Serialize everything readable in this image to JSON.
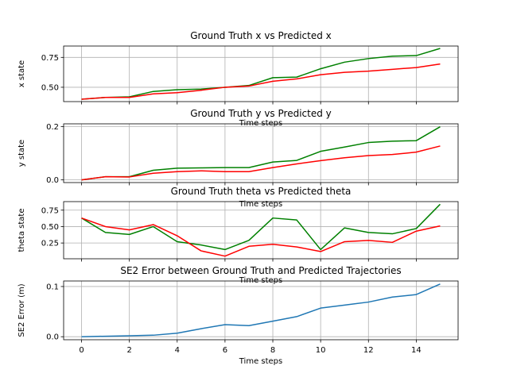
{
  "chart_data": [
    {
      "type": "line",
      "title": "Ground Truth x vs Predicted x",
      "xlabel": "Time steps",
      "ylabel": "x state",
      "grid": true,
      "show_xticklabels": false,
      "xlim": [
        -0.75,
        15.75
      ],
      "ylim": [
        0.38,
        0.845
      ],
      "yticks": [
        0.5,
        0.75
      ],
      "ytick_labels": [
        "0.50",
        "0.75"
      ],
      "xticks": [
        0,
        2,
        4,
        6,
        8,
        10,
        12,
        14
      ],
      "series": [
        {
          "color": "#008000",
          "x": [
            0,
            1,
            2,
            3,
            4,
            5,
            6,
            7,
            8,
            9,
            10,
            11,
            12,
            13,
            14,
            15
          ],
          "values": [
            0.4,
            0.415,
            0.42,
            0.465,
            0.48,
            0.485,
            0.5,
            0.515,
            0.58,
            0.585,
            0.655,
            0.71,
            0.74,
            0.76,
            0.765,
            0.825
          ]
        },
        {
          "color": "#ff0000",
          "x": [
            0,
            1,
            2,
            3,
            4,
            5,
            6,
            7,
            8,
            9,
            10,
            11,
            12,
            13,
            14,
            15
          ],
          "values": [
            0.4,
            0.415,
            0.415,
            0.445,
            0.455,
            0.475,
            0.5,
            0.51,
            0.55,
            0.57,
            0.605,
            0.625,
            0.635,
            0.65,
            0.665,
            0.695
          ]
        }
      ]
    },
    {
      "type": "line",
      "title": "Ground Truth y vs Predicted y",
      "xlabel": "Time steps",
      "ylabel": "y state",
      "grid": true,
      "show_xticklabels": false,
      "xlim": [
        -0.75,
        15.75
      ],
      "ylim": [
        -0.01,
        0.21
      ],
      "yticks": [
        0.0,
        0.2
      ],
      "ytick_labels": [
        "0.0",
        "0.2"
      ],
      "xticks": [
        0,
        2,
        4,
        6,
        8,
        10,
        12,
        14
      ],
      "series": [
        {
          "color": "#008000",
          "x": [
            0,
            1,
            2,
            3,
            4,
            5,
            6,
            7,
            8,
            9,
            10,
            11,
            12,
            13,
            14,
            15
          ],
          "values": [
            0.0,
            0.012,
            0.012,
            0.036,
            0.044,
            0.045,
            0.046,
            0.046,
            0.067,
            0.073,
            0.107,
            0.123,
            0.14,
            0.145,
            0.147,
            0.199
          ]
        },
        {
          "color": "#ff0000",
          "x": [
            0,
            1,
            2,
            3,
            4,
            5,
            6,
            7,
            8,
            9,
            10,
            11,
            12,
            13,
            14,
            15
          ],
          "values": [
            0.0,
            0.012,
            0.011,
            0.025,
            0.031,
            0.034,
            0.031,
            0.031,
            0.046,
            0.06,
            0.072,
            0.083,
            0.091,
            0.095,
            0.104,
            0.127
          ]
        }
      ]
    },
    {
      "type": "line",
      "title": "Ground Truth theta vs Predicted theta",
      "xlabel": "Time steps",
      "ylabel": "theta state",
      "grid": true,
      "show_xticklabels": false,
      "xlim": [
        -0.75,
        15.75
      ],
      "ylim": [
        0.01,
        0.88
      ],
      "yticks": [
        0.25,
        0.5,
        0.75
      ],
      "ytick_labels": [
        "0.25",
        "0.50",
        "0.75"
      ],
      "xticks": [
        0,
        2,
        4,
        6,
        8,
        10,
        12,
        14
      ],
      "series": [
        {
          "color": "#008000",
          "x": [
            0,
            1,
            2,
            3,
            4,
            5,
            6,
            7,
            8,
            9,
            10,
            11,
            12,
            13,
            14,
            15
          ],
          "values": [
            0.63,
            0.41,
            0.38,
            0.5,
            0.27,
            0.22,
            0.15,
            0.29,
            0.63,
            0.6,
            0.15,
            0.48,
            0.41,
            0.39,
            0.47,
            0.84
          ]
        },
        {
          "color": "#ff0000",
          "x": [
            0,
            1,
            2,
            3,
            4,
            5,
            6,
            7,
            8,
            9,
            10,
            11,
            12,
            13,
            14,
            15
          ],
          "values": [
            0.63,
            0.5,
            0.45,
            0.53,
            0.36,
            0.13,
            0.05,
            0.2,
            0.23,
            0.19,
            0.12,
            0.27,
            0.29,
            0.26,
            0.43,
            0.51
          ]
        }
      ]
    },
    {
      "type": "line",
      "title": "SE2 Error between Ground Truth and Predicted Trajectories",
      "xlabel": "Time steps",
      "ylabel": "SE2 Error (m)",
      "grid": true,
      "show_xticklabels": true,
      "xlim": [
        -0.75,
        15.75
      ],
      "ylim": [
        -0.006,
        0.111
      ],
      "yticks": [
        0.0,
        0.1
      ],
      "ytick_labels": [
        "0.0",
        "0.1"
      ],
      "xticks": [
        0,
        2,
        4,
        6,
        8,
        10,
        12,
        14
      ],
      "xtick_labels": [
        "0",
        "2",
        "4",
        "6",
        "8",
        "10",
        "12",
        "14"
      ],
      "series": [
        {
          "color": "#1f77b4",
          "x": [
            0,
            1,
            2,
            3,
            4,
            5,
            6,
            7,
            8,
            9,
            10,
            11,
            12,
            13,
            14,
            15
          ],
          "values": [
            0.0,
            0.001,
            0.002,
            0.003,
            0.007,
            0.016,
            0.024,
            0.022,
            0.031,
            0.04,
            0.057,
            0.063,
            0.069,
            0.079,
            0.084,
            0.105
          ]
        }
      ]
    }
  ]
}
